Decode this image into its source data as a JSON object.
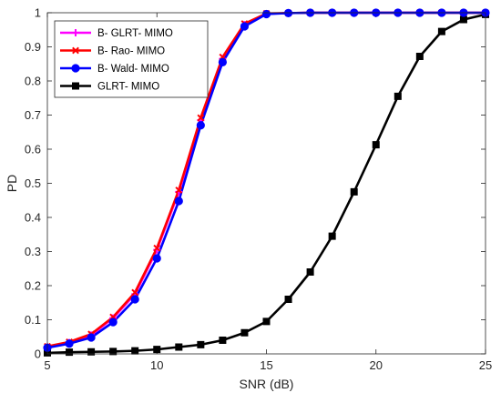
{
  "chart_data": {
    "type": "line",
    "title": "",
    "xlabel": "SNR (dB)",
    "ylabel": "PD",
    "xlim": [
      5,
      25
    ],
    "ylim": [
      0,
      1
    ],
    "xticks": [
      5,
      10,
      15,
      20,
      25
    ],
    "yticks": [
      0,
      0.1,
      0.2,
      0.3,
      0.4,
      0.5,
      0.6,
      0.7,
      0.8,
      0.9,
      1
    ],
    "grid": false,
    "legend_position": "top-left",
    "x": [
      5,
      6,
      7,
      8,
      9,
      10,
      11,
      12,
      13,
      14,
      15,
      16,
      17,
      18,
      19,
      20,
      21,
      22,
      23,
      24,
      25
    ],
    "series": [
      {
        "name": "B- GLRT- MIMO",
        "color": "#ff00ff",
        "marker": "plus",
        "values": [
          0.02,
          0.033,
          0.055,
          0.105,
          0.175,
          0.305,
          0.475,
          0.685,
          0.865,
          0.965,
          0.997,
          0.999,
          1,
          1,
          1,
          1,
          1,
          1,
          1,
          1,
          1
        ]
      },
      {
        "name": "B- Rao- MIMO",
        "color": "#ff0000",
        "marker": "x",
        "values": [
          0.022,
          0.035,
          0.058,
          0.108,
          0.18,
          0.31,
          0.48,
          0.692,
          0.87,
          0.968,
          0.998,
          0.999,
          1,
          1,
          1,
          1,
          1,
          1,
          1,
          1,
          1
        ]
      },
      {
        "name": "B- Wald- MIMO",
        "color": "#0000ff",
        "marker": "circle",
        "values": [
          0.018,
          0.03,
          0.048,
          0.093,
          0.16,
          0.28,
          0.448,
          0.67,
          0.855,
          0.96,
          0.996,
          0.999,
          1,
          1,
          1,
          1,
          1,
          1,
          1,
          1,
          1
        ]
      },
      {
        "name": "GLRT- MIMO",
        "color": "#000000",
        "marker": "square",
        "values": [
          0.003,
          0.005,
          0.006,
          0.007,
          0.009,
          0.013,
          0.02,
          0.027,
          0.04,
          0.062,
          0.095,
          0.16,
          0.24,
          0.345,
          0.475,
          0.613,
          0.755,
          0.872,
          0.945,
          0.98,
          0.995
        ]
      }
    ]
  }
}
